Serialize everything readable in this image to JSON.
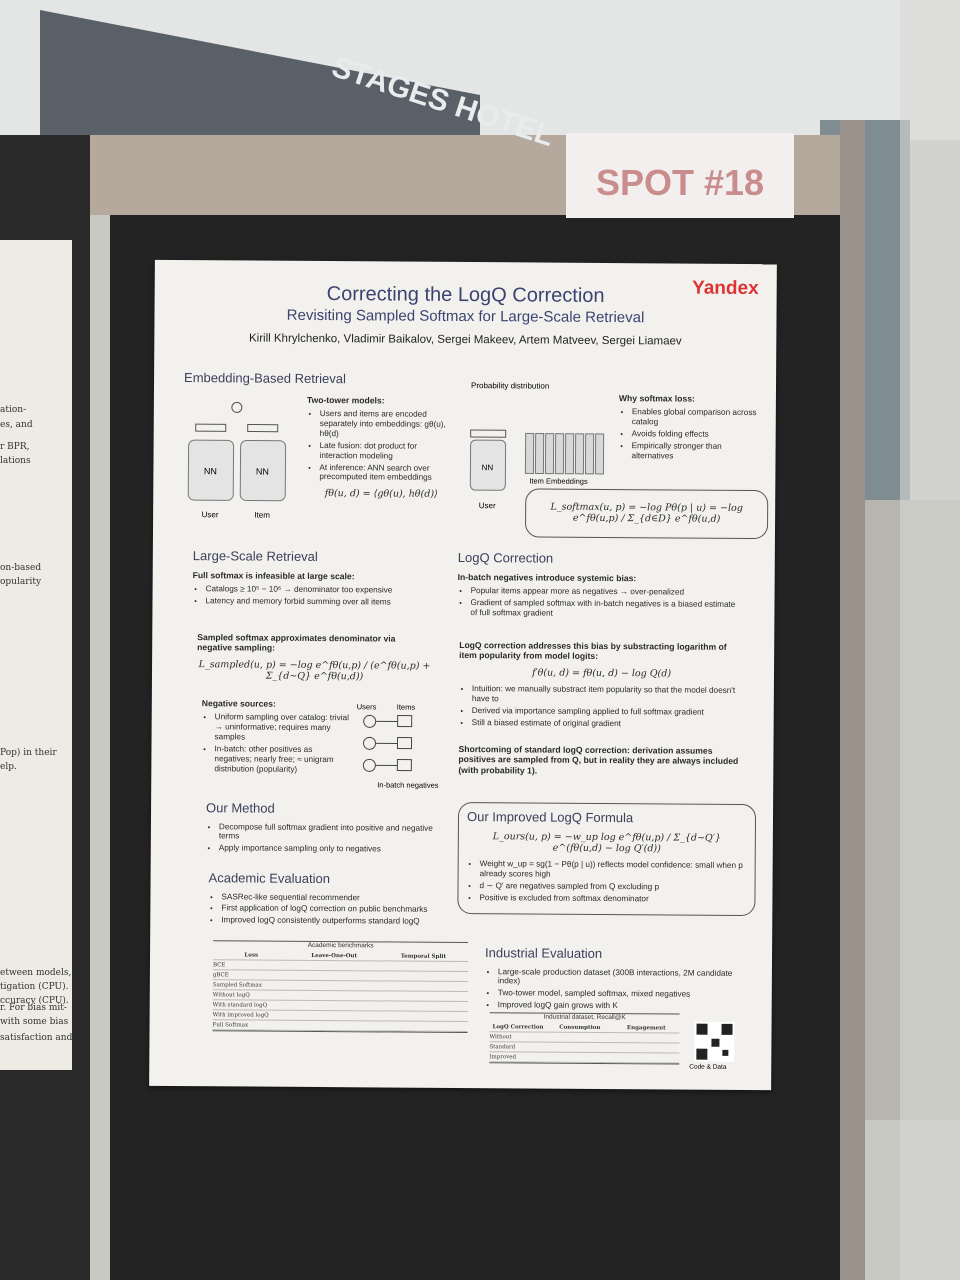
{
  "sign": "SPOT #18",
  "building_sign": "STAGES HOTEL",
  "side_poster": [
    "ation-",
    "es, and",
    "r BPR,",
    "lations",
    "on-based",
    "opularity",
    "Pop) in their",
    "elp.",
    "etween models,",
    "tigation (CPU).",
    "ccuracy (CPU).",
    "r. For bias mit-",
    "with some bias",
    "satisfaction and"
  ],
  "poster": {
    "logo": "Yandex",
    "title": "Correcting the LogQ Correction",
    "subtitle": "Revisiting Sampled Softmax for Large-Scale Retrieval",
    "authors": "Kirill Khrylchenko, Vladimir Baikalov, Sergei Makeev, Artem Matveev, Sergei Liamaev",
    "diagram": {
      "nn": "NN",
      "user": "User",
      "item": "Item",
      "probability": "Probability distribution",
      "item_embeddings": "Item Embeddings",
      "users": "Users",
      "items": "Items",
      "in_batch": "In-batch negatives"
    },
    "blocks": [
      {
        "heading": "Embedding-Based Retrieval"
      },
      {
        "lead": "Two-tower models:",
        "bullets": [
          "Users and items are encoded separately into embeddings: gθ(u), hθ(d)",
          "Late fusion: dot product for interaction modeling",
          "At inference: ANN search over precomputed item embeddings"
        ],
        "formula": "fθ(u, d) = ⟨gθ(u), hθ(d)⟩"
      },
      {
        "lead": "Why softmax loss:",
        "bullets": [
          "Enables global comparison across catalog",
          "Avoids folding effects",
          "Empirically stronger than alternatives"
        ]
      },
      {
        "formula": "L_softmax(u, p) = −log Pθ(p | u) = −log e^fθ(u,p) / Σ_{d∈D} e^fθ(u,d)"
      },
      {
        "heading": "Large-Scale Retrieval",
        "lead": "Full softmax is infeasible at large scale:",
        "bullets": [
          "Catalogs ≥ 10⁵ − 10⁶ → denominator too expensive",
          "Latency and memory forbid summing over all items"
        ]
      },
      {
        "lead": "Sampled softmax approximates denominator via negative sampling:",
        "formula": "L_sampled(u, p) = −log e^fθ(u,p) / (e^fθ(u,p) + Σ_{d∼Q} e^fθ(u,d))"
      },
      {
        "lead": "Negative sources:",
        "bullets": [
          "Uniform sampling over catalog: trivial → uninformative; requires many samples",
          "In-batch: other positives as negatives; nearly free; ≈ unigram distribution (popularity)"
        ]
      },
      {
        "heading": "LogQ Correction",
        "lead": "In-batch negatives introduce systemic bias:",
        "bullets": [
          "Popular items appear more as negatives → over-penalized",
          "Gradient of sampled softmax with in-batch negatives is a biased estimate of full softmax gradient"
        ]
      },
      {
        "lead": "LogQ correction addresses this bias by substracting logarithm of item popularity from model logits:",
        "formula": "f′θ(u, d) = fθ(u, d) − log Q(d)",
        "bullets": [
          "Intuition: we manually substract item popularity so that the model doesn't have to",
          "Derived via importance sampling applied to full softmax gradient",
          "Still a biased estimate of original gradient"
        ]
      },
      {
        "lead": "Shortcoming of standard logQ correction: derivation assumes positives are sampled from Q, but in reality they are always included (with probability 1)."
      },
      {
        "heading": "Our Method",
        "bullets": [
          "Decompose full softmax gradient into positive and negative terms",
          "Apply importance sampling only to negatives"
        ]
      },
      {
        "heading": "Our Improved LogQ Formula",
        "formula": "L_ours(u, p) = −w_up log e^fθ(u,p) / Σ_{d∼Q′} e^(fθ(u,d) − log Q′(d))",
        "bullets": [
          "Weight w_up = sg(1 − Pθ(p | u)) reflects model confidence: small when p already scores high",
          "d ∼ Q′ are negatives sampled from Q excluding p",
          "Positive is excluded from softmax denominator"
        ]
      },
      {
        "heading": "Academic Evaluation",
        "bullets": [
          "SASRec-like sequential recommender",
          "First application of logQ correction on public benchmarks",
          "Improved logQ consistently outperforms standard logQ"
        ]
      },
      {
        "heading": "Industrial Evaluation",
        "bullets": [
          "Large-scale production dataset (300B interactions, 2M candidate index)",
          "Two-tower model, sampled softmax, mixed negatives",
          "Improved logQ gain grows with K"
        ]
      }
    ],
    "academic_table": {
      "title": "Academic benchmarks",
      "corner": "Loss",
      "groups": [
        "Leave-One-Out",
        "Temporal Split"
      ],
      "rows": [
        "BCE",
        "gBCE",
        "Sampled Softmax",
        "Without logQ",
        "With standard logQ",
        "With improved logQ",
        "Full Softmax"
      ]
    },
    "industrial_table": {
      "title": "Industrial dataset, Recall@K",
      "corner": "LogQ Correction",
      "groups": [
        "Consumption",
        "Engagement"
      ],
      "rows": [
        "Without",
        "Standard",
        "Improved"
      ]
    },
    "qr_caption": "Code & Data"
  }
}
